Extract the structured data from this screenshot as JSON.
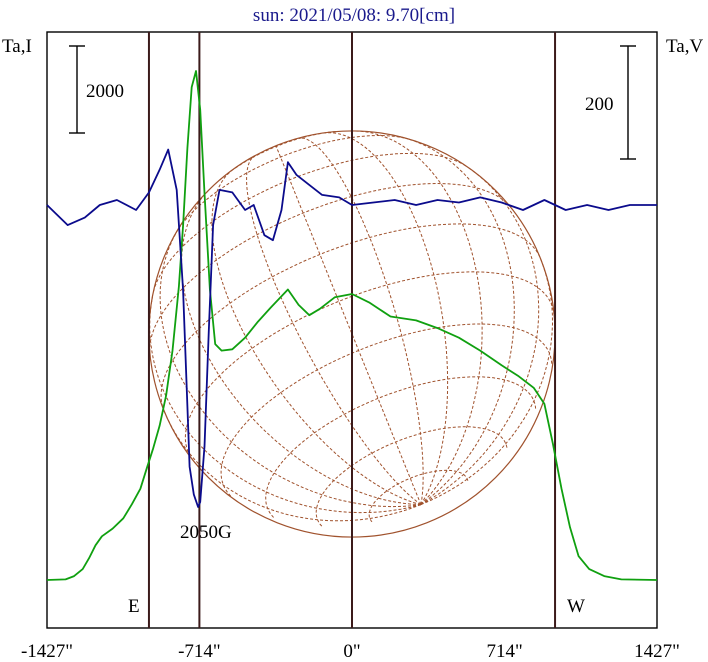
{
  "chart_data": {
    "type": "line",
    "title": "sun: 2021/05/08: 9.70[cm]",
    "left_axis_label": "Ta,I",
    "right_axis_label": "Ta,V",
    "left_scale_bar_value": "2000",
    "right_scale_bar_value": "200",
    "annotation": "2050G",
    "east_label": "E",
    "west_label": "W",
    "x_ticks": [
      {
        "value": -1427,
        "label": "-1427\""
      },
      {
        "value": -714,
        "label": "-714\""
      },
      {
        "value": 0,
        "label": "0\""
      },
      {
        "value": 714,
        "label": "714\""
      },
      {
        "value": 1427,
        "label": "1427\""
      }
    ],
    "xlim": [
      -1427,
      1427
    ],
    "vertical_lines": [
      -950,
      -714,
      0,
      950
    ],
    "disk_radius_arcsec": 950,
    "colors": {
      "title": "#1a1a8c",
      "intensity": "#10a010",
      "polarization": "#0b0b8c",
      "disk": "#a0522d",
      "vlines": "#3b1a1a"
    },
    "series": [
      {
        "color": "#10a010",
        "points": [
          [
            -1427,
            -620
          ],
          [
            -1340,
            -610
          ],
          [
            -1300,
            -560
          ],
          [
            -1260,
            -450
          ],
          [
            -1230,
            -280
          ],
          [
            -1200,
            -80
          ],
          [
            -1170,
            60
          ],
          [
            -1120,
            180
          ],
          [
            -1070,
            340
          ],
          [
            -1030,
            560
          ],
          [
            -990,
            800
          ],
          [
            -960,
            1120
          ],
          [
            -930,
            1430
          ],
          [
            -900,
            1780
          ],
          [
            -870,
            2250
          ],
          [
            -840,
            2950
          ],
          [
            -810,
            3950
          ],
          [
            -790,
            4900
          ],
          [
            -770,
            6100
          ],
          [
            -750,
            7050
          ],
          [
            -730,
            7300
          ],
          [
            -710,
            6700
          ],
          [
            -690,
            5400
          ],
          [
            -665,
            3900
          ],
          [
            -640,
            3050
          ],
          [
            -610,
            2950
          ],
          [
            -560,
            2970
          ],
          [
            -500,
            3150
          ],
          [
            -440,
            3400
          ],
          [
            -380,
            3620
          ],
          [
            -300,
            3900
          ],
          [
            -250,
            3660
          ],
          [
            -200,
            3500
          ],
          [
            -150,
            3600
          ],
          [
            -80,
            3780
          ],
          [
            0,
            3830
          ],
          [
            80,
            3700
          ],
          [
            180,
            3480
          ],
          [
            300,
            3420
          ],
          [
            400,
            3300
          ],
          [
            500,
            3150
          ],
          [
            600,
            2950
          ],
          [
            700,
            2720
          ],
          [
            780,
            2550
          ],
          [
            850,
            2370
          ],
          [
            900,
            2120
          ],
          [
            940,
            1500
          ],
          [
            980,
            800
          ],
          [
            1020,
            200
          ],
          [
            1060,
            -250
          ],
          [
            1110,
            -450
          ],
          [
            1180,
            -560
          ],
          [
            1260,
            -610
          ],
          [
            1427,
            -620
          ]
        ]
      },
      {
        "color": "#0b0b8c",
        "points": [
          [
            -1427,
            0
          ],
          [
            -1330,
            -40
          ],
          [
            -1250,
            -25
          ],
          [
            -1180,
            0
          ],
          [
            -1100,
            10
          ],
          [
            -1010,
            -10
          ],
          [
            -950,
            25
          ],
          [
            -900,
            70
          ],
          [
            -860,
            110
          ],
          [
            -820,
            30
          ],
          [
            -790,
            -170
          ],
          [
            -770,
            -400
          ],
          [
            -760,
            -520
          ],
          [
            -740,
            -575
          ],
          [
            -720,
            -600
          ],
          [
            -710,
            -590
          ],
          [
            -690,
            -480
          ],
          [
            -670,
            -250
          ],
          [
            -650,
            -40
          ],
          [
            -620,
            30
          ],
          [
            -560,
            25
          ],
          [
            -500,
            -10
          ],
          [
            -460,
            0
          ],
          [
            -410,
            -60
          ],
          [
            -370,
            -70
          ],
          [
            -330,
            -10
          ],
          [
            -300,
            85
          ],
          [
            -260,
            60
          ],
          [
            -200,
            40
          ],
          [
            -140,
            20
          ],
          [
            -60,
            15
          ],
          [
            0,
            0
          ],
          [
            100,
            5
          ],
          [
            200,
            10
          ],
          [
            300,
            0
          ],
          [
            400,
            10
          ],
          [
            500,
            5
          ],
          [
            600,
            15
          ],
          [
            700,
            5
          ],
          [
            800,
            -10
          ],
          [
            900,
            10
          ],
          [
            1000,
            -10
          ],
          [
            1100,
            0
          ],
          [
            1200,
            -10
          ],
          [
            1300,
            0
          ],
          [
            1427,
            0
          ]
        ]
      }
    ]
  }
}
